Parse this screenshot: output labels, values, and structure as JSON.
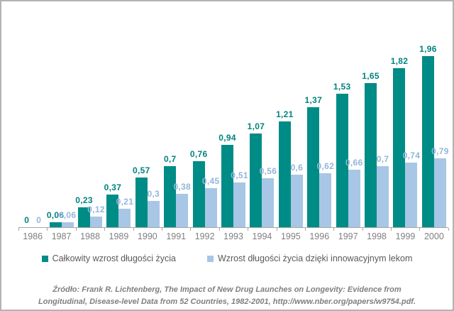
{
  "chart_data": {
    "type": "bar",
    "categories": [
      "1986",
      "1987",
      "1988",
      "1989",
      "1990",
      "1991",
      "1992",
      "1993",
      "1994",
      "1995",
      "1996",
      "1997",
      "1998",
      "1999",
      "2000"
    ],
    "series": [
      {
        "name": "Całkowity wzrost długości życia",
        "color": "#008c86",
        "label_color": "#00837e",
        "values": [
          0,
          0.06,
          0.23,
          0.37,
          0.57,
          0.7,
          0.76,
          0.94,
          1.07,
          1.21,
          1.37,
          1.53,
          1.65,
          1.82,
          1.96
        ],
        "labels": [
          "0",
          "0,06",
          "0,23",
          "0,37",
          "0,57",
          "0,7",
          "0,76",
          "0,94",
          "1,07",
          "1,21",
          "1,37",
          "1,53",
          "1,65",
          "1,82",
          "1,96"
        ]
      },
      {
        "name": "Wzrost długości życia dzięki innowacyjnym lekom",
        "color": "#a8c6e6",
        "label_color": "#93b6dd",
        "values": [
          0,
          0.06,
          0.12,
          0.21,
          0.3,
          0.38,
          0.45,
          0.51,
          0.56,
          0.6,
          0.62,
          0.66,
          0.7,
          0.74,
          0.79
        ],
        "labels": [
          "0",
          "0,06",
          "0,12",
          "0,21",
          "0,3",
          "0,38",
          "0,45",
          "0,51",
          "0,56",
          "0,6",
          "0,62",
          "0,66",
          "0,7",
          "0,74",
          "0,79"
        ]
      }
    ],
    "title": "",
    "xlabel": "",
    "ylabel": "",
    "ylim": [
      0,
      2.05
    ],
    "grid": false,
    "legend_position": "bottom",
    "value_decimal_separator": ","
  },
  "axis": {
    "line_color": "#a6a6a6",
    "tick_label_color": "#7f7f7f"
  },
  "source_note": "Źródło: Frank R. Lichtenberg, The Impact of New Drug Launches on Longevity: Evidence from Longitudinal, Disease-level Data from 52 Countries, 1982-2001, http://www.nber.org/papers/w9754.pdf."
}
